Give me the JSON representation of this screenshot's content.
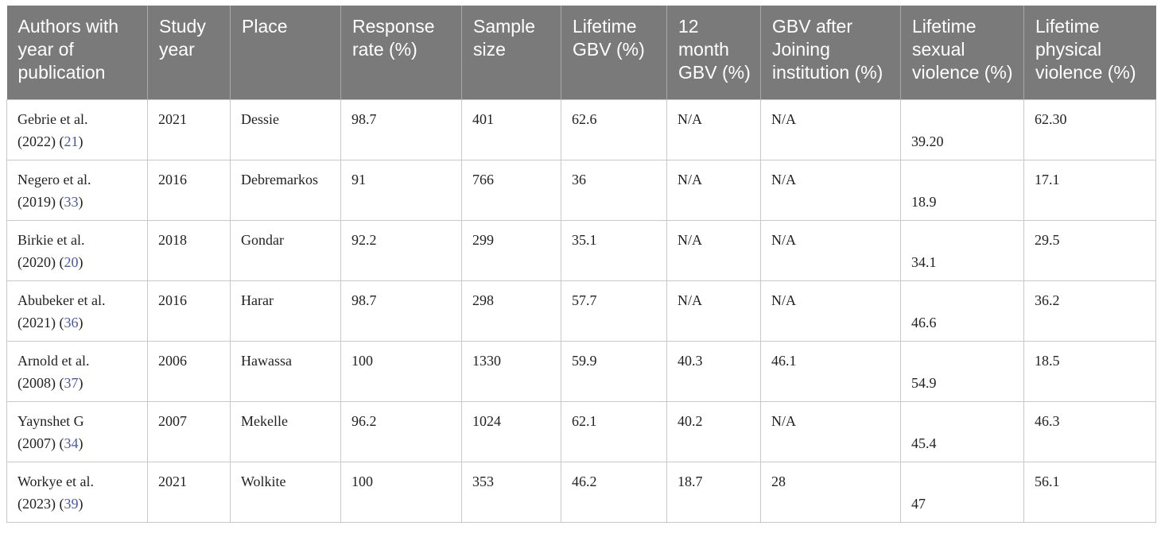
{
  "headers": [
    "Authors with year of publication",
    "Study year",
    "Place",
    "Response rate (%)",
    "Sample size",
    "Lifetime GBV (%)",
    "12 month GBV (%)",
    "GBV after Joining institution (%)",
    "Lifetime sexual violence (%)",
    "Lifetime physical violence (%)"
  ],
  "rows": [
    {
      "author": "Gebrie et al.",
      "pub": "(2022)",
      "ref": "21",
      "study_year": "2021",
      "place": "Dessie",
      "response_rate": "98.7",
      "sample_size": "401",
      "lifetime_gbv": "62.6",
      "gbv_12m": "N/A",
      "gbv_after": "N/A",
      "sexual": "39.20",
      "physical": "62.30"
    },
    {
      "author": "Negero et al.",
      "pub": "(2019)",
      "ref": "33",
      "study_year": "2016",
      "place": "Debremarkos",
      "response_rate": "91",
      "sample_size": "766",
      "lifetime_gbv": "36",
      "gbv_12m": "N/A",
      "gbv_after": "N/A",
      "sexual": "18.9",
      "physical": "17.1"
    },
    {
      "author": "Birkie et al.",
      "pub": "(2020)",
      "ref": "20",
      "study_year": "2018",
      "place": "Gondar",
      "response_rate": "92.2",
      "sample_size": "299",
      "lifetime_gbv": "35.1",
      "gbv_12m": "N/A",
      "gbv_after": "N/A",
      "sexual": "34.1",
      "physical": "29.5"
    },
    {
      "author": "Abubeker et al.",
      "pub": "(2021)",
      "ref": "36",
      "study_year": "2016",
      "place": "Harar",
      "response_rate": "98.7",
      "sample_size": "298",
      "lifetime_gbv": "57.7",
      "gbv_12m": "N/A",
      "gbv_after": "N/A",
      "sexual": "46.6",
      "physical": "36.2"
    },
    {
      "author": "Arnold et al.",
      "pub": "(2008)",
      "ref": "37",
      "study_year": "2006",
      "place": "Hawassa",
      "response_rate": "100",
      "sample_size": "1330",
      "lifetime_gbv": "59.9",
      "gbv_12m": "40.3",
      "gbv_after": "46.1",
      "sexual": "54.9",
      "physical": "18.5"
    },
    {
      "author": "Yaynshet G",
      "pub": "(2007)",
      "ref": "34",
      "study_year": "2007",
      "place": "Mekelle",
      "response_rate": "96.2",
      "sample_size": "1024",
      "lifetime_gbv": "62.1",
      "gbv_12m": "40.2",
      "gbv_after": "N/A",
      "sexual": "45.4",
      "physical": "46.3"
    },
    {
      "author": "Workye et al.",
      "pub": "(2023)",
      "ref": "39",
      "study_year": "2021",
      "place": "Wolkite",
      "response_rate": "100",
      "sample_size": "353",
      "lifetime_gbv": "46.2",
      "gbv_12m": "18.7",
      "gbv_after": "28",
      "sexual": "47",
      "physical": "56.1"
    }
  ],
  "colors": {
    "header_bg": "#7a7a7a",
    "header_text": "#ffffff",
    "ref_link": "#4a57a6",
    "grid": "#c8c8c8"
  }
}
